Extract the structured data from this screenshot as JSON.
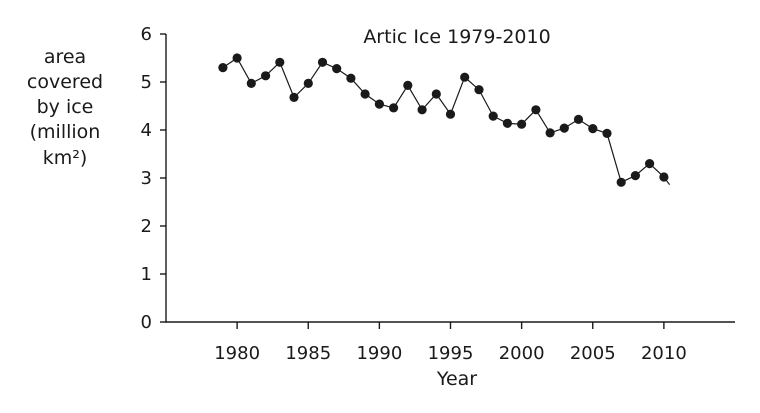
{
  "chart_data": {
    "type": "line",
    "title": "Artic Ice 1979-2010",
    "xlabel": "Year",
    "ylabel_lines": [
      "area",
      "covered",
      "by ice",
      "(million",
      "km²)"
    ],
    "xlim": [
      1975,
      1980,
      1985,
      1990,
      1995,
      2000,
      2005,
      2010,
      2015
    ],
    "xticks": [
      1980,
      1985,
      1990,
      1995,
      2000,
      2005,
      2010
    ],
    "ylim": [
      0,
      6
    ],
    "yticks": [
      0,
      1,
      2,
      3,
      4,
      5,
      6
    ],
    "grid": false,
    "series": [
      {
        "x": [
          1979,
          1980,
          1981,
          1982,
          1983,
          1984,
          1985,
          1986,
          1987,
          1988,
          1989,
          1990,
          1991,
          1992,
          1993,
          1994,
          1995,
          1996,
          1997,
          1998,
          1999,
          2000,
          2001,
          2002,
          2003,
          2004,
          2005,
          2006,
          2007,
          2008,
          2009,
          2010
        ],
        "y": [
          5.3,
          5.5,
          4.97,
          5.13,
          5.41,
          4.68,
          4.97,
          5.41,
          5.28,
          5.08,
          4.75,
          4.54,
          4.46,
          4.93,
          4.42,
          4.75,
          4.33,
          5.1,
          4.84,
          4.29,
          4.14,
          4.12,
          4.42,
          3.94,
          4.04,
          4.22,
          4.03,
          3.93,
          2.91,
          3.05,
          3.3,
          3.02
        ],
        "line_end": {
          "x": 2010.4,
          "y": 2.86
        }
      }
    ]
  }
}
